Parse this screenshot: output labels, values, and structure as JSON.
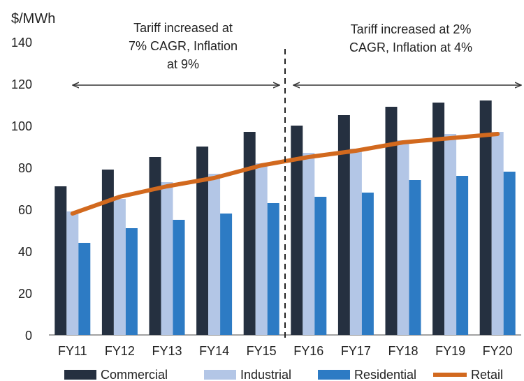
{
  "chart_data": {
    "type": "bar",
    "title": "",
    "ylabel": "$/MWh",
    "xlabel": "",
    "ylim": [
      0,
      140
    ],
    "yticks": [
      0,
      20,
      40,
      60,
      80,
      100,
      120,
      140
    ],
    "grid": false,
    "legend_position": "bottom",
    "categories": [
      "FY11",
      "FY12",
      "FY13",
      "FY14",
      "FY15",
      "FY16",
      "FY17",
      "FY18",
      "FY19",
      "FY20"
    ],
    "series": [
      {
        "name": "Commercial",
        "type": "bar",
        "color": "#253040",
        "values": [
          71,
          79,
          85,
          90,
          97,
          100,
          105,
          109,
          111,
          112
        ]
      },
      {
        "name": "Industrial",
        "type": "bar",
        "color": "#b3c6e6",
        "values": [
          59,
          65,
          73,
          77,
          82,
          87,
          89,
          93,
          96,
          97
        ]
      },
      {
        "name": "Residential",
        "type": "bar",
        "color": "#2d7bc4",
        "values": [
          44,
          51,
          55,
          58,
          63,
          66,
          68,
          74,
          76,
          78
        ]
      },
      {
        "name": "Retail",
        "type": "line",
        "color": "#d2691e",
        "values": [
          58,
          66,
          71,
          75,
          81,
          85,
          88,
          92,
          94,
          96
        ]
      }
    ],
    "annotations": [
      {
        "text_lines": [
          "Tariff increased at",
          "7% CAGR, Inflation",
          "at 9%"
        ],
        "span": [
          "FY11",
          "FY15"
        ]
      },
      {
        "text_lines": [
          "Tariff increased at 2%",
          "CAGR, Inflation at 4%"
        ],
        "span": [
          "FY16",
          "FY20"
        ]
      }
    ],
    "divider_between": [
      "FY15",
      "FY16"
    ]
  }
}
